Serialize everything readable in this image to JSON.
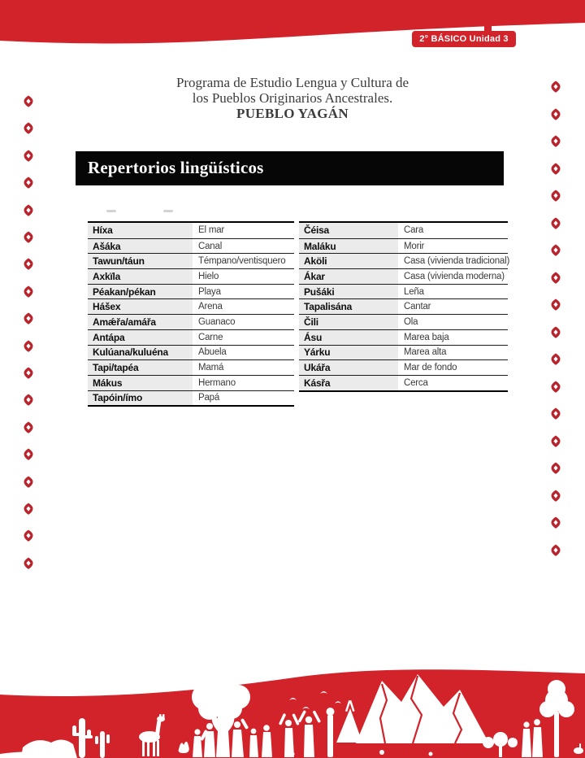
{
  "header": {
    "badge": "2° BÁSICO Unidad 3",
    "program_title_lines": [
      "Programa de Estudio Lengua y Cultura de",
      "los Pueblos Originarios Ancestrales.",
      "PUEBLO YAGÁN"
    ]
  },
  "section": {
    "title": "Repertorios lingüísticos"
  },
  "vocabulary": {
    "left_table": {
      "rows": [
        {
          "word": "Híxa",
          "translation": "El mar"
        },
        {
          "word": "Ašáka",
          "translation": "Canal"
        },
        {
          "word": "Tawun/táun",
          "translation": "Témpano/ventisquero"
        },
        {
          "word": "Axkïla",
          "translation": "Hielo"
        },
        {
          "word": "Péakan/pékan",
          "translation": "Playa"
        },
        {
          "word": "Hášex",
          "translation": "Arena"
        },
        {
          "word": "Amǽřa/amářa",
          "translation": "Guanaco"
        },
        {
          "word": "Antápa",
          "translation": "Carne"
        },
        {
          "word": "Kulúana/kuluéna",
          "translation": "Abuela"
        },
        {
          "word": "Tapi/tapéa",
          "translation": "Mamá"
        },
        {
          "word": "Mákus",
          "translation": "Hermano"
        },
        {
          "word": "Tapóin/ímo",
          "translation": "Papá"
        }
      ]
    },
    "right_table": {
      "rows": [
        {
          "word": "Čéisa",
          "translation": "Cara"
        },
        {
          "word": "Maláku",
          "translation": "Morir"
        },
        {
          "word": "Aköli",
          "translation": "Casa (vivienda tradicional)"
        },
        {
          "word": "Ákar",
          "translation": "Casa (vivienda moderna)"
        },
        {
          "word": "Pušáki",
          "translation": "Leña"
        },
        {
          "word": "Tapalisána",
          "translation": "Cantar"
        },
        {
          "word": "Čili",
          "translation": "Ola"
        },
        {
          "word": "Ásu",
          "translation": "Marea baja"
        },
        {
          "word": "Yárku",
          "translation": "Marea alta"
        },
        {
          "word": "Ukářa",
          "translation": "Mar de fondo"
        },
        {
          "word": "Kásřa",
          "translation": "Cerca"
        }
      ]
    }
  },
  "colors": {
    "brand_red": "#d2232a",
    "ornament_red": "#b9232b",
    "bar_black": "#060606"
  }
}
